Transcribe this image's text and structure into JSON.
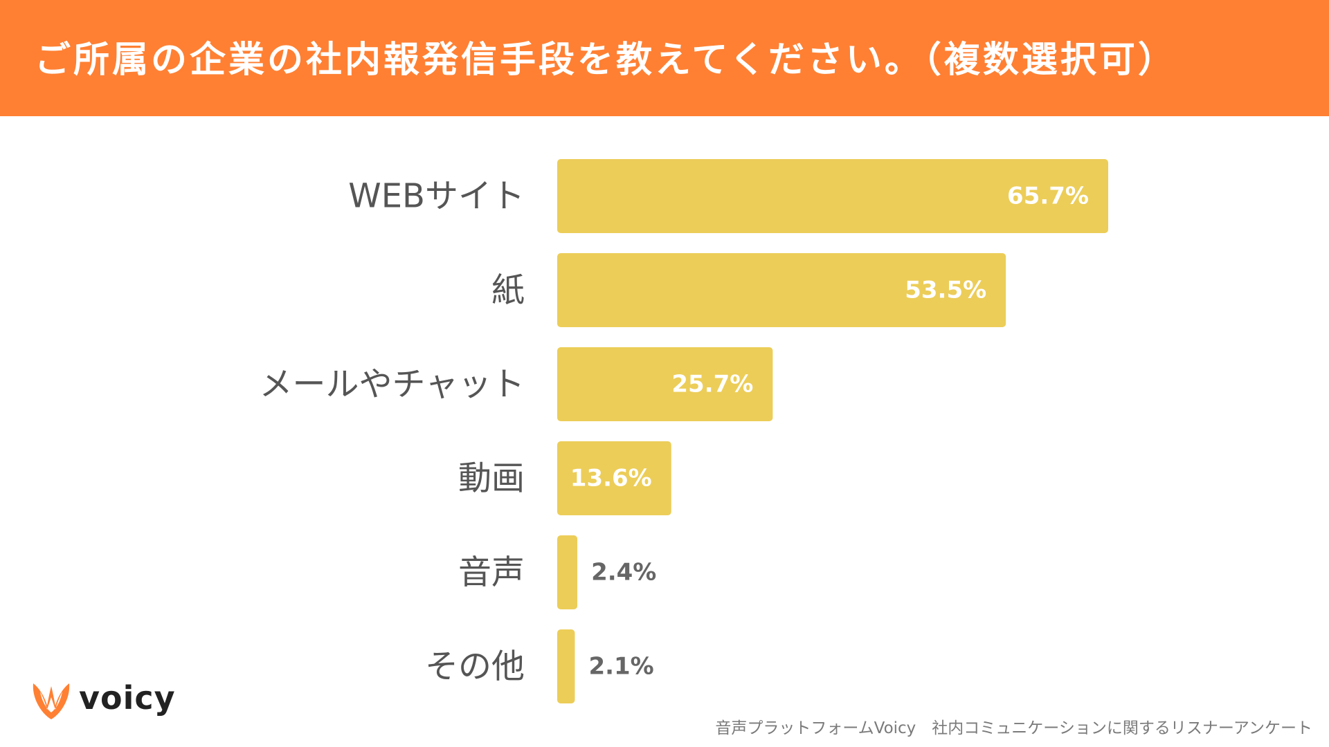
{
  "header": {
    "title": "ご所属の企業の社内報発信手段を教えてください。（複数選択可）"
  },
  "chart_data": {
    "type": "bar",
    "orientation": "horizontal",
    "title": "ご所属の企業の社内報発信手段を教えてください。（複数選択可）",
    "categories": [
      "WEBサイト",
      "紙",
      "メールやチャット",
      "動画",
      "音声",
      "その他"
    ],
    "values": [
      65.7,
      53.5,
      25.7,
      13.6,
      2.4,
      2.1
    ],
    "value_labels": [
      "65.7%",
      "53.5%",
      "25.7%",
      "13.6%",
      "2.4%",
      "2.1%"
    ],
    "unit": "%",
    "xlim": [
      0,
      65.7
    ],
    "bar_color": "#eccd58",
    "label_inside_color": "#ffffff",
    "label_outside_color": "#666666",
    "category_label_color": "#555555",
    "xlabel": "",
    "ylabel": ""
  },
  "colors": {
    "header_bg": "#ff8033",
    "brand_orange": "#ff8033"
  },
  "logo": {
    "text": "voicy",
    "icon": "voicy-v-icon"
  },
  "footer": {
    "source": "音声プラットフォームVoicy　社内コミュニケーションに関するリスナーアンケート"
  }
}
